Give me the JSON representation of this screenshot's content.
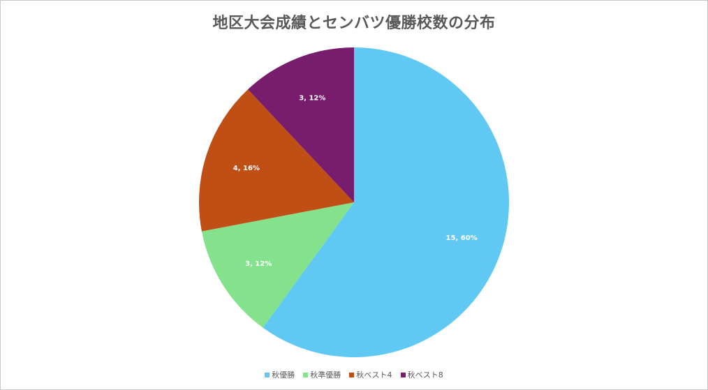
{
  "chart_data": {
    "type": "pie",
    "title": "地区大会成績とセンバツ優勝校数の分布",
    "categories": [
      "秋優勝",
      "秋準優勝",
      "秋ベスト4",
      "秋ベスト8"
    ],
    "values": [
      15,
      3,
      4,
      3
    ],
    "percentages": [
      60,
      12,
      16,
      12
    ],
    "data_labels": [
      "15, 60%",
      "3, 12%",
      "4, 16%",
      "3, 12%"
    ],
    "colors": [
      "#5fc9f3",
      "#84e18c",
      "#c04f15",
      "#781c6d"
    ],
    "start_angle_deg": 0,
    "direction": "clockwise",
    "legend_position": "bottom"
  }
}
